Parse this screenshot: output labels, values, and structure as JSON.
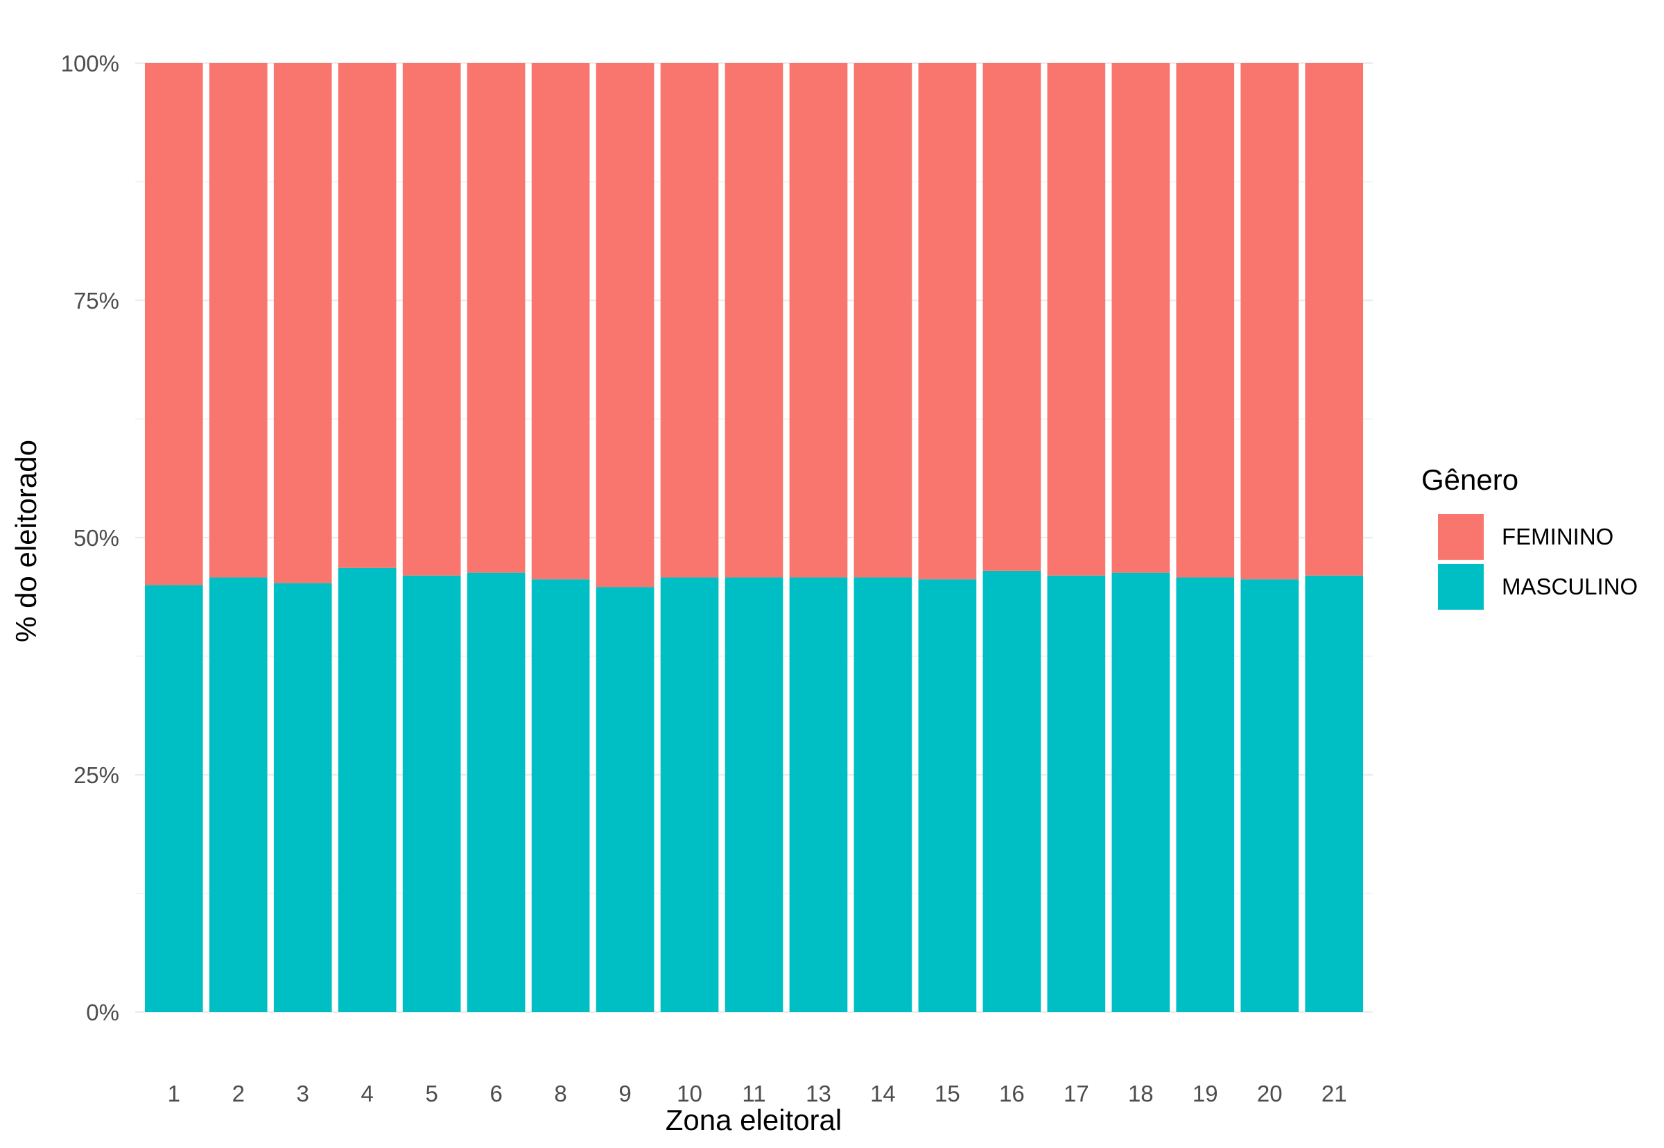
{
  "chart_data": {
    "type": "bar",
    "stacked": true,
    "normalized": true,
    "xlabel": "Zona eleitoral",
    "ylabel": "% do eleitorado",
    "categories": [
      "1",
      "2",
      "3",
      "4",
      "5",
      "6",
      "8",
      "9",
      "10",
      "11",
      "13",
      "14",
      "15",
      "16",
      "17",
      "18",
      "19",
      "20",
      "21"
    ],
    "y_ticks": [
      "0%",
      "25%",
      "50%",
      "75%",
      "100%"
    ],
    "ylim": [
      0,
      1
    ],
    "grid": true,
    "legend": {
      "title": "Gênero",
      "position": "right"
    },
    "series": [
      {
        "name": "MASCULINO",
        "color": "#00BFC4",
        "values": [
          0.45,
          0.458,
          0.452,
          0.468,
          0.46,
          0.463,
          0.456,
          0.448,
          0.458,
          0.458,
          0.458,
          0.458,
          0.456,
          0.465,
          0.46,
          0.463,
          0.458,
          0.456,
          0.46
        ]
      },
      {
        "name": "FEMININO",
        "color": "#F8766D",
        "values": [
          0.55,
          0.542,
          0.548,
          0.532,
          0.54,
          0.537,
          0.544,
          0.552,
          0.542,
          0.542,
          0.542,
          0.542,
          0.544,
          0.535,
          0.54,
          0.537,
          0.542,
          0.544,
          0.54
        ]
      }
    ]
  }
}
